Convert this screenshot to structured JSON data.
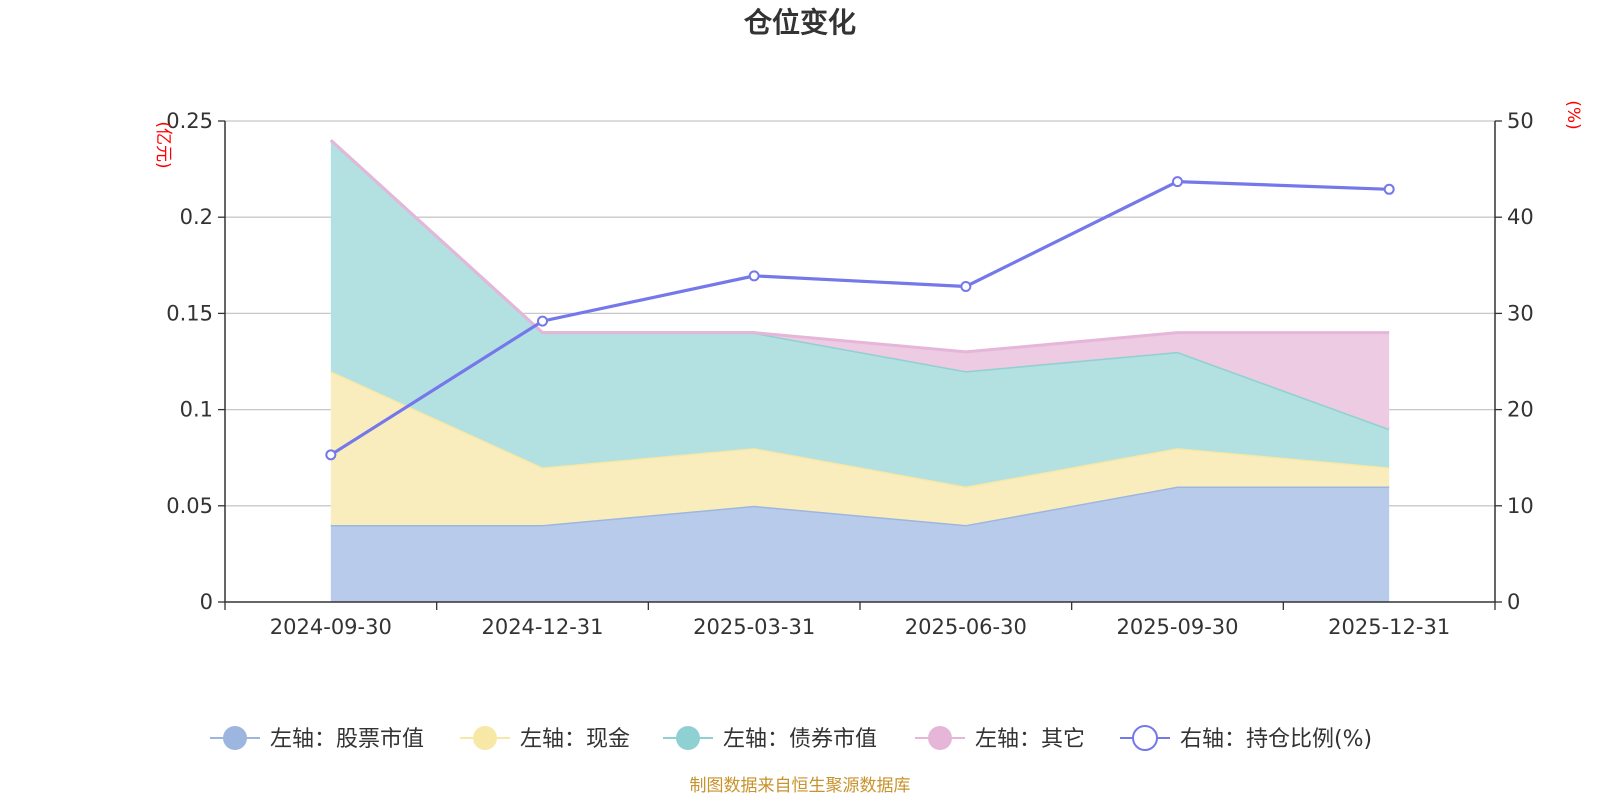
{
  "chart_data": {
    "type": "area",
    "title": "仓位变化",
    "categories": [
      "2024-09-30",
      "2024-12-31",
      "2025-03-31",
      "2025-06-30",
      "2025-09-30",
      "2025-12-31"
    ],
    "left_axis": {
      "unit": "(亿元)",
      "ylim": [
        0,
        0.25
      ],
      "ticks": [
        "0",
        "0.05",
        "0.1",
        "0.15",
        "0.2",
        "0.25"
      ]
    },
    "right_axis": {
      "unit": "(%)",
      "ylim": [
        0,
        50
      ],
      "ticks": [
        "0",
        "10",
        "20",
        "30",
        "40",
        "50"
      ]
    },
    "series": [
      {
        "name": "左轴：股票市值",
        "axis": "left",
        "kind": "stacked-area",
        "color": "#9db6e0",
        "fill": "#b9cbea",
        "values": [
          0.04,
          0.04,
          0.05,
          0.04,
          0.06,
          0.06
        ]
      },
      {
        "name": "左轴：现金",
        "axis": "left",
        "kind": "stacked-area",
        "color": "#f7e8a6",
        "fill": "#f9edbe",
        "values": [
          0.08,
          0.03,
          0.03,
          0.02,
          0.02,
          0.01
        ]
      },
      {
        "name": "左轴：债券市值",
        "axis": "left",
        "kind": "stacked-area",
        "color": "#8fd0d2",
        "fill": "#b3e0e1",
        "values": [
          0.12,
          0.07,
          0.06,
          0.06,
          0.05,
          0.02
        ]
      },
      {
        "name": "左轴：其它",
        "axis": "left",
        "kind": "stacked-area",
        "color": "#e6b6d9",
        "fill": "#eccbe3",
        "values": [
          0.0,
          0.0,
          0.0,
          0.01,
          0.01,
          0.05
        ]
      },
      {
        "name": "右轴：持仓比例(%)",
        "axis": "right",
        "kind": "line",
        "color": "#7478ea",
        "values": [
          15.3,
          29.2,
          33.9,
          32.8,
          43.7,
          42.9
        ]
      }
    ],
    "grid": true,
    "legend_position": "bottom"
  },
  "source_note": "制图数据来自恒生聚源数据库"
}
